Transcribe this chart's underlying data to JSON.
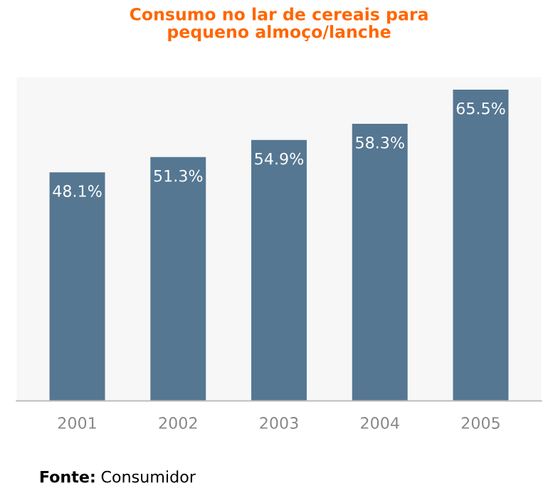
{
  "chart_data": {
    "type": "bar",
    "title": "Consumo no lar de cereais para\npequeno almoço/lanche",
    "categories": [
      "2001",
      "2002",
      "2003",
      "2004",
      "2005"
    ],
    "values": [
      48.1,
      51.3,
      54.9,
      58.3,
      65.5
    ],
    "value_labels": [
      "48.1%",
      "51.3%",
      "54.9%",
      "58.3%",
      "65.5%"
    ],
    "color": "#557792",
    "grid": false,
    "legend": false,
    "annotations": [
      "Fonte: Consumidor"
    ]
  }
}
